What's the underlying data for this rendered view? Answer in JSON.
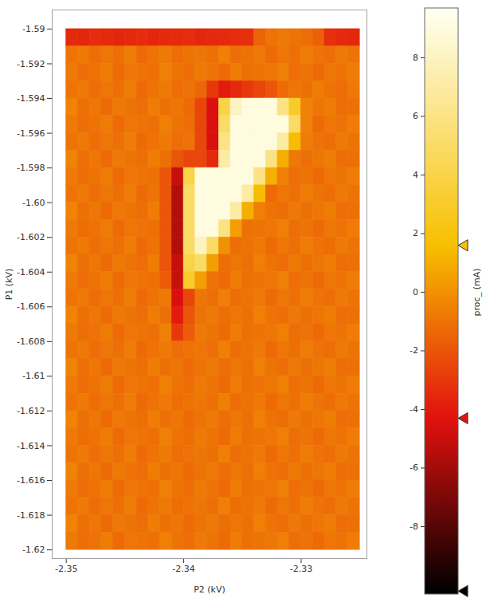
{
  "chart_data": {
    "type": "heatmap",
    "xlabel": "P2 (kV)",
    "ylabel": "P1 (kV)",
    "xlim": [
      -2.3512,
      -2.3244
    ],
    "ylim": [
      -1.6205,
      -1.5889
    ],
    "xticks": [
      -2.35,
      -2.34,
      -2.33
    ],
    "yticks": [
      -1.59,
      -1.592,
      -1.594,
      -1.596,
      -1.598,
      {
        "value": -1.6,
        "label": "-1.60"
      },
      -1.602,
      -1.604,
      -1.606,
      -1.608,
      -1.61,
      -1.612,
      -1.614,
      -1.616,
      -1.618,
      -1.62
    ],
    "x_edges": [
      -2.35,
      -2.349,
      -2.348,
      -2.347,
      -2.346,
      -2.345,
      -2.344,
      -2.343,
      -2.342,
      -2.341,
      -2.34,
      -2.339,
      -2.338,
      -2.337,
      -2.336,
      -2.335,
      -2.334,
      -2.333,
      -2.332,
      -2.331,
      -2.33,
      -2.329,
      -2.328,
      -2.327,
      -2.326,
      -2.325
    ],
    "y_edges": [
      -1.59,
      -1.591,
      -1.592,
      -1.593,
      -1.594,
      -1.595,
      -1.596,
      -1.597,
      -1.598,
      -1.599,
      -1.6,
      -1.601,
      -1.602,
      -1.603,
      -1.604,
      -1.605,
      -1.606,
      -1.607,
      -1.608,
      -1.609,
      -1.61,
      -1.611,
      -1.612,
      -1.613,
      -1.614,
      -1.615,
      -1.616,
      -1.617,
      -1.618,
      -1.619,
      -1.62
    ],
    "z": [
      [
        -3.5,
        -3.6,
        -3.4,
        -3.5,
        -3.6,
        -3.5,
        -3.4,
        -3.6,
        -3.5,
        -3.5,
        -3.4,
        -3.6,
        -3.5,
        -3.5,
        -3.4,
        -3.3,
        -1.5,
        -1,
        -0.8,
        -1,
        -1.2,
        -1.6,
        -3.3,
        -3.5,
        -3.6
      ],
      [
        -1,
        -0.8,
        -1.2,
        -0.9,
        -1.1,
        -0.7,
        -1.3,
        -1,
        -0.8,
        -1.2,
        -1,
        -0.9,
        -1.1,
        -0.6,
        -1.2,
        -1,
        -0.8,
        -1.3,
        -0.9,
        -1.1,
        -0.7,
        -1,
        -1.2,
        -0.8,
        -1
      ],
      [
        -0.8,
        -1.2,
        -1,
        -0.7,
        -1.3,
        -0.9,
        -1,
        -1.1,
        -0.6,
        -1,
        -1.2,
        -0.8,
        -1,
        -1.3,
        -0.7,
        -1.1,
        -1,
        -0.9,
        -0.6,
        -1.2,
        -1,
        -1.3,
        -0.9,
        -1,
        -0.7
      ],
      [
        -1,
        -0.8,
        -1.2,
        -0.9,
        -1.1,
        -0.7,
        -1.3,
        -1,
        -0.8,
        -1.2,
        -1,
        -1.4,
        -3,
        -4,
        -3.5,
        -3,
        -2.5,
        -2,
        -1.3,
        -0.9,
        -1.1,
        -0.7,
        -1,
        -1.2,
        -0.8
      ],
      [
        -0.5,
        -1.1,
        -0.9,
        -1.3,
        -0.8,
        -1,
        -1.2,
        -0.7,
        -1.1,
        -0.9,
        -1.3,
        -2.5,
        -4.5,
        4,
        8,
        9,
        9,
        9,
        6,
        3,
        -0.5,
        -0.9,
        -0.7,
        -1.2,
        -1.1
      ],
      [
        -0.8,
        -1.2,
        -1,
        -0.7,
        -1.3,
        -0.9,
        -1,
        -1.1,
        -0.6,
        -1,
        -1.2,
        -2.5,
        -4.5,
        5,
        9,
        9,
        9,
        9,
        9,
        5,
        -0.5,
        -1.3,
        -0.9,
        -1,
        -0.7
      ],
      [
        -1,
        -0.8,
        -1.2,
        -0.9,
        -1.1,
        -0.7,
        -1.3,
        -1,
        -0.8,
        -1.2,
        -1,
        -2.5,
        -4.5,
        6,
        9,
        9,
        9,
        9,
        7,
        1.5,
        -0.7,
        -1,
        -1.2,
        -0.8,
        -1
      ],
      [
        -0.5,
        -1.1,
        -0.9,
        -1.3,
        -0.8,
        -1,
        -1.2,
        -0.7,
        -1.1,
        -2,
        -2.5,
        -2.5,
        -3.5,
        7,
        9,
        9,
        9,
        6,
        1,
        -0.8,
        -1.1,
        -0.9,
        -0.7,
        -1.2,
        -1.1
      ],
      [
        -0.8,
        -1.2,
        -1,
        -0.7,
        -1.3,
        -0.9,
        -1,
        -1.1,
        -2,
        -5,
        4,
        9,
        9,
        9,
        9,
        9,
        6,
        1,
        -0.6,
        -1.2,
        -1,
        -1.3,
        -0.9,
        -1,
        -0.7
      ],
      [
        -1,
        -0.8,
        -1.2,
        -0.9,
        -1.1,
        -0.7,
        -1.3,
        -1,
        -2,
        -5.5,
        5,
        9,
        9,
        9,
        9,
        7,
        1.5,
        -1.3,
        -0.9,
        -1.1,
        -0.7,
        -1,
        -1.2,
        -0.8,
        -1
      ],
      [
        -0.5,
        -1.1,
        -0.9,
        -1.3,
        -0.8,
        -1,
        -1.2,
        -0.7,
        -2,
        -5.5,
        5,
        9,
        9,
        9,
        7,
        1,
        -0.6,
        -1,
        -1.2,
        -0.8,
        -1.1,
        -0.9,
        -0.7,
        -1.2,
        -1.1
      ],
      [
        -0.8,
        -1.2,
        -1,
        -0.7,
        -1.3,
        -0.9,
        -1,
        -1.1,
        -2,
        -5.5,
        5,
        9,
        9,
        6,
        0.5,
        -1.1,
        -1,
        -0.9,
        -0.6,
        -1.2,
        -1,
        -1.3,
        -0.9,
        -1,
        -0.7
      ],
      [
        -1,
        -0.8,
        -1.2,
        -0.9,
        -1.1,
        -0.7,
        -1.3,
        -1,
        -2,
        -5.5,
        5,
        8,
        5,
        0,
        -1.2,
        -1,
        -0.8,
        -1.3,
        -0.9,
        -1.1,
        -0.7,
        -1,
        -1.2,
        -0.8,
        -1
      ],
      [
        -0.5,
        -1.1,
        -0.9,
        -1.3,
        -0.8,
        -1,
        -1.2,
        -0.7,
        -2,
        -5,
        4,
        5,
        0.5,
        -1.2,
        -0.9,
        -1.1,
        -0.6,
        -1,
        -1.2,
        -0.8,
        -1.1,
        -0.9,
        -0.7,
        -1.2,
        -1.1
      ],
      [
        -0.8,
        -1.2,
        -1,
        -0.7,
        -1.3,
        -0.9,
        -1,
        -1.1,
        -1.8,
        -5,
        3,
        0.5,
        -1,
        -1.3,
        -0.7,
        -1.1,
        -1,
        -0.9,
        -0.6,
        -1.2,
        -1,
        -1.3,
        -0.9,
        -1,
        -0.7
      ],
      [
        -1,
        -0.8,
        -1.2,
        -0.9,
        -1.1,
        -0.7,
        -1.3,
        -1,
        -0.8,
        -4.5,
        -2.5,
        -0.9,
        -1.1,
        -0.6,
        -1.2,
        -1,
        -0.8,
        -1.3,
        -0.9,
        -1.1,
        -0.7,
        -1,
        -1.2,
        -0.8,
        -1
      ],
      [
        -0.5,
        -1.1,
        -0.9,
        -1.3,
        -0.8,
        -1,
        -1.2,
        -0.7,
        -1.1,
        -4,
        -2,
        -1,
        -0.8,
        -1.2,
        -0.9,
        -1.1,
        -0.6,
        -1,
        -1.2,
        -0.8,
        -1.1,
        -0.9,
        -0.7,
        -1.2,
        -1.1
      ],
      [
        -0.8,
        -1.2,
        -1,
        -0.7,
        -1.3,
        -0.9,
        -1,
        -1.1,
        -0.6,
        -3,
        -1.8,
        -0.8,
        -1,
        -1.3,
        -0.7,
        -1.1,
        -1,
        -0.9,
        -0.6,
        -1.2,
        -1,
        -1.3,
        -0.9,
        -1,
        -0.7
      ],
      [
        -1,
        -0.8,
        -1.2,
        -0.9,
        -1.1,
        -0.7,
        -1.3,
        -1,
        -0.8,
        -1.2,
        -1,
        -0.9,
        -1.1,
        -0.6,
        -1.2,
        -1,
        -0.8,
        -1.3,
        -0.9,
        -1.1,
        -0.7,
        -1,
        -1.2,
        -0.8,
        -1
      ],
      [
        -0.5,
        -1.1,
        -0.9,
        -1.3,
        -0.8,
        -1,
        -1.2,
        -0.7,
        -1.1,
        -0.9,
        -1.3,
        -1,
        -0.8,
        -1.2,
        -0.9,
        -1.1,
        -0.6,
        -1,
        -1.2,
        -0.8,
        -1.1,
        -0.9,
        -0.7,
        -1.2,
        -1.1
      ],
      [
        -0.8,
        -1.2,
        -1,
        -0.7,
        -1.3,
        -0.9,
        -1,
        -1.1,
        -0.6,
        -1,
        -1.2,
        -0.8,
        -1,
        -1.3,
        -0.7,
        -1.1,
        -1,
        -0.9,
        -0.6,
        -1.2,
        -1,
        -1.3,
        -0.9,
        -1,
        -0.7
      ],
      [
        -1,
        -0.8,
        -1.2,
        -0.9,
        -1.1,
        -0.7,
        -1.3,
        -1,
        -0.8,
        -1.2,
        -1,
        -0.9,
        -1.1,
        -0.6,
        -1.2,
        -1,
        -0.8,
        -1.3,
        -0.9,
        -1.1,
        -0.7,
        -1,
        -1.2,
        -0.8,
        -1
      ],
      [
        -0.5,
        -1.1,
        -0.9,
        -1.3,
        -0.8,
        -1,
        -1.2,
        -0.7,
        -1.1,
        -0.9,
        -1.3,
        -1,
        -0.8,
        -1.2,
        -0.9,
        -1.1,
        -0.6,
        -1,
        -1.2,
        -0.8,
        -1.1,
        -0.9,
        -0.7,
        -1.2,
        -1.1
      ],
      [
        -0.8,
        -1.2,
        -1,
        -0.7,
        -1.3,
        -0.9,
        -1,
        -1.1,
        -0.6,
        -1,
        -1.2,
        -0.8,
        -1,
        -1.3,
        -0.7,
        -1.1,
        -1,
        -0.9,
        -0.6,
        -1.2,
        -1,
        -1.3,
        -0.9,
        -1,
        -0.7
      ],
      [
        -1,
        -0.8,
        -1.2,
        -0.9,
        -1.1,
        -0.7,
        -1.3,
        -1,
        -0.8,
        -1.2,
        -1,
        -0.9,
        -1.1,
        -0.6,
        -1.2,
        -1,
        -0.8,
        -1.3,
        -0.9,
        -1.1,
        -0.7,
        -1,
        -1.2,
        -0.8,
        -1
      ],
      [
        -0.5,
        -1.1,
        -0.9,
        -1.3,
        -0.8,
        -1,
        -1.2,
        -0.7,
        -1.1,
        -0.9,
        -1.3,
        -1,
        -0.8,
        -1.2,
        -0.9,
        -1.1,
        -0.6,
        -1,
        -1.2,
        -0.8,
        -1.1,
        -0.9,
        -0.7,
        -1.2,
        -1.1
      ],
      [
        -0.8,
        -1.2,
        -1,
        -0.7,
        -1.3,
        -0.9,
        -1,
        -1.1,
        -0.6,
        -1,
        -1.2,
        -0.8,
        -1,
        -1.3,
        -0.7,
        -1.1,
        -1,
        -0.9,
        -0.6,
        -1.2,
        -1,
        -1.3,
        -0.9,
        -1,
        -0.7
      ],
      [
        -1,
        -0.8,
        -1.2,
        -0.9,
        -1.1,
        -0.7,
        -1.3,
        -1,
        -0.8,
        -1.2,
        -1,
        -0.9,
        -1.1,
        -0.6,
        -1.2,
        -1,
        -0.8,
        -1.3,
        -0.9,
        -1.1,
        -0.7,
        -1,
        -1.2,
        -0.8,
        -1
      ],
      [
        -0.5,
        -1.1,
        -0.9,
        -1.3,
        -0.8,
        -1,
        -1.2,
        -0.7,
        -1.1,
        -0.9,
        -1.3,
        -1,
        -0.8,
        -1.2,
        -0.9,
        -1.1,
        -0.6,
        -1,
        -1.2,
        -0.8,
        -1.1,
        -0.9,
        -0.7,
        -1.2,
        -1.1
      ],
      [
        -0.8,
        -1.2,
        -1,
        -0.7,
        -1.3,
        -0.9,
        -1,
        -1.1,
        -0.6,
        -1,
        -1.2,
        -0.8,
        -1,
        -1.3,
        -0.7,
        -1.1,
        -1,
        -0.9,
        -0.6,
        -1.2,
        -1,
        -1.3,
        -0.9,
        -1,
        -0.7
      ]
    ],
    "colorbar": {
      "label": "proc_ (mA)",
      "lim": [
        -10.3,
        9.7
      ],
      "ticks": [
        -8,
        -6,
        -4,
        -2,
        0,
        2,
        4,
        6,
        8
      ],
      "stops": [
        {
          "value": -10.2,
          "color": "#000000"
        },
        {
          "value": -4.3,
          "color": "#e2110e"
        },
        {
          "value": 1.6,
          "color": "#f7c000"
        },
        {
          "value": 9.5,
          "color": "#ffffee"
        }
      ],
      "markers": [
        -10.2,
        -4.3,
        1.6
      ]
    }
  }
}
